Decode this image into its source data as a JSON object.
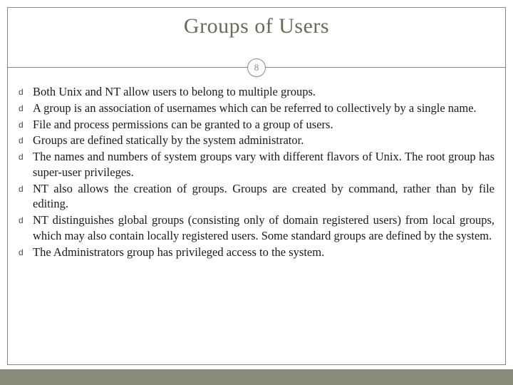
{
  "slide": {
    "title": "Groups of Users",
    "page_number": "8",
    "colors": {
      "title_color": "#6b6b55",
      "border_color": "#8a8a7a",
      "footer_color": "#8a8a7a",
      "bullet_color": "#4a4a3a",
      "text_color": "#1a1a1a",
      "background": "#ffffff"
    },
    "typography": {
      "title_fontsize": 30,
      "body_fontsize": 16.5,
      "page_fontsize": 13,
      "font_family": "Georgia"
    },
    "bullet_glyph": "d",
    "bullets": [
      {
        "text": "Both Unix and NT allow users to belong to multiple groups.",
        "justify": false
      },
      {
        "text": "A group is an association of usernames which can be referred to collectively by a single name.",
        "justify": true
      },
      {
        "text": "File and process permissions can be granted to a group of users.",
        "justify": false
      },
      {
        "text": "Groups are defined statically by the system administrator.",
        "justify": false
      },
      {
        "text": "The names and numbers of system groups vary with different flavors of Unix. The root group has super-user privileges.",
        "justify": true
      },
      {
        "text": "NT also allows the creation of groups. Groups are created by command, rather than by file editing.",
        "justify": true
      },
      {
        "text": "NT distinguishes global groups (consisting only of domain registered users) from local groups, which may also contain locally registered users. Some standard groups are defined by the system.",
        "justify": true
      },
      {
        "text": "The Administrators group has privileged access to the system.",
        "justify": false
      }
    ]
  }
}
